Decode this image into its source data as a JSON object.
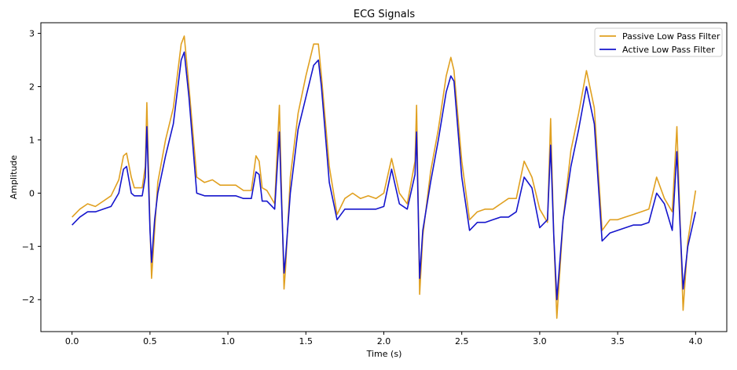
{
  "chart_data": {
    "type": "line",
    "title": "ECG Signals",
    "xlabel": "Time (s)",
    "ylabel": "Amplitude",
    "xlim": [
      -0.2,
      4.2
    ],
    "ylim": [
      -2.6,
      3.2
    ],
    "xticks": [
      0.0,
      0.5,
      1.0,
      1.5,
      2.0,
      2.5,
      3.0,
      3.5,
      4.0
    ],
    "xtick_labels": [
      "0.0",
      "0.5",
      "1.0",
      "1.5",
      "2.0",
      "2.5",
      "3.0",
      "3.5",
      "4.0"
    ],
    "yticks": [
      -2,
      -1,
      0,
      1,
      2,
      3
    ],
    "ytick_labels": [
      "−2",
      "−1",
      "0",
      "1",
      "2",
      "3"
    ],
    "grid": false,
    "legend_position": "top-right",
    "series": [
      {
        "name": "Passive Low Pass Filter",
        "color": "#e0a020",
        "x": [
          0.0,
          0.05,
          0.1,
          0.15,
          0.2,
          0.25,
          0.3,
          0.33,
          0.35,
          0.38,
          0.4,
          0.45,
          0.47,
          0.48,
          0.5,
          0.51,
          0.53,
          0.55,
          0.6,
          0.65,
          0.7,
          0.72,
          0.75,
          0.8,
          0.85,
          0.9,
          0.95,
          1.0,
          1.05,
          1.1,
          1.15,
          1.18,
          1.2,
          1.22,
          1.25,
          1.3,
          1.33,
          1.34,
          1.36,
          1.37,
          1.4,
          1.45,
          1.5,
          1.55,
          1.58,
          1.6,
          1.65,
          1.7,
          1.75,
          1.8,
          1.85,
          1.9,
          1.95,
          2.0,
          2.05,
          2.1,
          2.15,
          2.2,
          2.21,
          2.23,
          2.25,
          2.3,
          2.35,
          2.4,
          2.43,
          2.45,
          2.5,
          2.55,
          2.6,
          2.65,
          2.7,
          2.75,
          2.8,
          2.85,
          2.9,
          2.95,
          3.0,
          3.05,
          3.07,
          3.09,
          3.11,
          3.15,
          3.2,
          3.25,
          3.3,
          3.35,
          3.4,
          3.45,
          3.5,
          3.55,
          3.6,
          3.65,
          3.7,
          3.75,
          3.8,
          3.85,
          3.88,
          3.9,
          3.92,
          3.95,
          4.0
        ],
        "values": [
          -0.45,
          -0.3,
          -0.2,
          -0.25,
          -0.15,
          -0.05,
          0.25,
          0.7,
          0.75,
          0.3,
          0.1,
          0.1,
          0.5,
          1.7,
          -0.6,
          -1.6,
          -0.7,
          0.2,
          1.0,
          1.6,
          2.8,
          2.95,
          2.0,
          0.3,
          0.2,
          0.25,
          0.15,
          0.15,
          0.15,
          0.05,
          0.05,
          0.7,
          0.6,
          0.1,
          0.05,
          -0.2,
          1.65,
          0.5,
          -1.8,
          -1.4,
          0.3,
          1.5,
          2.2,
          2.8,
          2.8,
          2.2,
          0.5,
          -0.4,
          -0.1,
          0.0,
          -0.1,
          -0.05,
          -0.1,
          0.0,
          0.65,
          0.0,
          -0.2,
          0.6,
          1.65,
          -1.9,
          -0.8,
          0.4,
          1.2,
          2.2,
          2.55,
          2.3,
          0.6,
          -0.5,
          -0.35,
          -0.3,
          -0.3,
          -0.2,
          -0.1,
          -0.1,
          0.6,
          0.3,
          -0.3,
          -0.55,
          1.4,
          -0.8,
          -2.35,
          -0.5,
          0.8,
          1.5,
          2.3,
          1.6,
          -0.7,
          -0.5,
          -0.5,
          -0.45,
          -0.4,
          -0.35,
          -0.3,
          0.3,
          -0.1,
          -0.35,
          1.25,
          -0.5,
          -2.2,
          -0.9,
          0.05
        ]
      },
      {
        "name": "Active Low Pass Filter",
        "color": "#1515cc",
        "x": [
          0.0,
          0.05,
          0.1,
          0.15,
          0.2,
          0.25,
          0.3,
          0.33,
          0.35,
          0.38,
          0.4,
          0.45,
          0.47,
          0.48,
          0.5,
          0.51,
          0.53,
          0.55,
          0.6,
          0.65,
          0.7,
          0.72,
          0.75,
          0.8,
          0.85,
          0.9,
          0.95,
          1.0,
          1.05,
          1.1,
          1.15,
          1.18,
          1.2,
          1.22,
          1.25,
          1.3,
          1.33,
          1.34,
          1.36,
          1.37,
          1.4,
          1.45,
          1.5,
          1.55,
          1.58,
          1.6,
          1.65,
          1.7,
          1.75,
          1.8,
          1.85,
          1.9,
          1.95,
          2.0,
          2.05,
          2.1,
          2.15,
          2.2,
          2.21,
          2.23,
          2.25,
          2.3,
          2.35,
          2.4,
          2.43,
          2.45,
          2.5,
          2.55,
          2.6,
          2.65,
          2.7,
          2.75,
          2.8,
          2.85,
          2.9,
          2.95,
          3.0,
          3.05,
          3.07,
          3.09,
          3.11,
          3.15,
          3.2,
          3.25,
          3.3,
          3.35,
          3.4,
          3.45,
          3.5,
          3.55,
          3.6,
          3.65,
          3.7,
          3.75,
          3.8,
          3.85,
          3.88,
          3.9,
          3.92,
          3.95,
          4.0
        ],
        "values": [
          -0.6,
          -0.45,
          -0.35,
          -0.35,
          -0.3,
          -0.25,
          0.0,
          0.45,
          0.5,
          0.0,
          -0.05,
          -0.05,
          0.3,
          1.25,
          -0.7,
          -1.3,
          -0.5,
          0.0,
          0.7,
          1.3,
          2.5,
          2.65,
          1.8,
          0.0,
          -0.05,
          -0.05,
          -0.05,
          -0.05,
          -0.05,
          -0.1,
          -0.1,
          0.4,
          0.35,
          -0.15,
          -0.15,
          -0.3,
          1.15,
          0.2,
          -1.5,
          -1.2,
          0.0,
          1.2,
          1.8,
          2.4,
          2.5,
          2.0,
          0.2,
          -0.5,
          -0.3,
          -0.3,
          -0.3,
          -0.3,
          -0.3,
          -0.25,
          0.45,
          -0.2,
          -0.3,
          0.35,
          1.15,
          -1.6,
          -0.7,
          0.2,
          1.0,
          1.9,
          2.2,
          2.1,
          0.3,
          -0.7,
          -0.55,
          -0.55,
          -0.5,
          -0.45,
          -0.45,
          -0.35,
          0.3,
          0.1,
          -0.65,
          -0.5,
          0.9,
          -0.8,
          -2.0,
          -0.5,
          0.5,
          1.2,
          2.0,
          1.3,
          -0.9,
          -0.75,
          -0.7,
          -0.65,
          -0.6,
          -0.6,
          -0.55,
          0.0,
          -0.2,
          -0.7,
          0.78,
          -0.6,
          -1.8,
          -1.0,
          -0.35
        ]
      }
    ]
  }
}
